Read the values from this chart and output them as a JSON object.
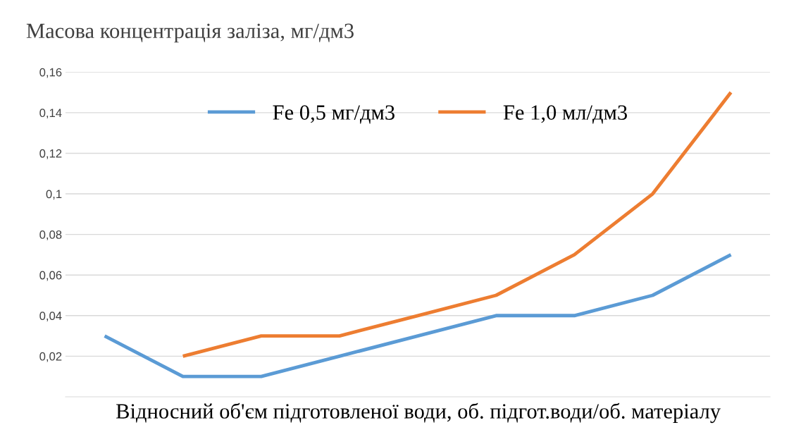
{
  "chart_data": {
    "type": "line",
    "ylabel": "Масова концентрація заліза, мг/дм3",
    "xlabel": "Відносний об'єм підготовленої води, об. підгот.води/об. матеріалу",
    "categories": [
      null,
      null,
      null,
      null,
      null,
      null,
      null,
      null,
      null
    ],
    "series": [
      {
        "name": "Fe 0,5 мг/дм3",
        "color": "#5b9bd5",
        "values": [
          0.03,
          0.01,
          0.01,
          0.02,
          0.03,
          0.04,
          0.04,
          0.05,
          0.07
        ]
      },
      {
        "name": "Fe 1,0 мл/дм3",
        "color": "#ed7d31",
        "values": [
          null,
          0.02,
          0.03,
          0.03,
          0.04,
          0.05,
          0.07,
          0.1,
          0.15
        ]
      }
    ],
    "ylim": [
      0,
      0.16
    ],
    "yticks": [
      {
        "value": 0.02,
        "label": "0,02"
      },
      {
        "value": 0.04,
        "label": "0,04"
      },
      {
        "value": 0.06,
        "label": "0,06"
      },
      {
        "value": 0.08,
        "label": "0,08"
      },
      {
        "value": 0.1,
        "label": "0,1"
      },
      {
        "value": 0.12,
        "label": "0,12"
      },
      {
        "value": 0.14,
        "label": "0,14"
      },
      {
        "value": 0.16,
        "label": "0,16"
      }
    ],
    "grid": "y",
    "legend": "top",
    "marker": "none",
    "line_style": "solid"
  }
}
